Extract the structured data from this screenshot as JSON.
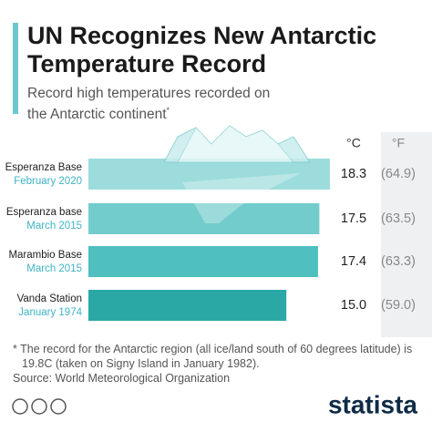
{
  "chart_data": {
    "type": "bar",
    "title": "UN Recognizes New Antarctic Temperature Record",
    "subtitle": "Record high temperatures recorded on the Antarctic continent",
    "subtitle_note": "*",
    "categories": [
      "Esperanza Base",
      "Esperanza base",
      "Marambio Base",
      "Vanda Station"
    ],
    "dates": [
      "February 2020",
      "March 2015",
      "March 2015",
      "January 1974"
    ],
    "colors": [
      "#9ddcdc",
      "#72cccc",
      "#4fbfbf",
      "#2aa8a6"
    ],
    "series": [
      {
        "name": "°C",
        "values": [
          18.3,
          17.5,
          17.4,
          15.0
        ],
        "value_labels": [
          "18.3",
          "17.5",
          "17.4",
          "15.0"
        ]
      },
      {
        "name": "°F",
        "values": [
          64.9,
          63.5,
          63.3,
          59.0
        ],
        "value_labels": [
          "(64.9)",
          "(63.5)",
          "(63.3)",
          "(59.0)"
        ]
      }
    ],
    "xlim": [
      0,
      20
    ],
    "footnote": "* The record for the Antarctic region (all ice/land south of 60 degrees latitude) is 19.8C (taken on Signy Island in January 1982).",
    "source": "Source: World Meteorological Organization",
    "brand": "statista"
  }
}
